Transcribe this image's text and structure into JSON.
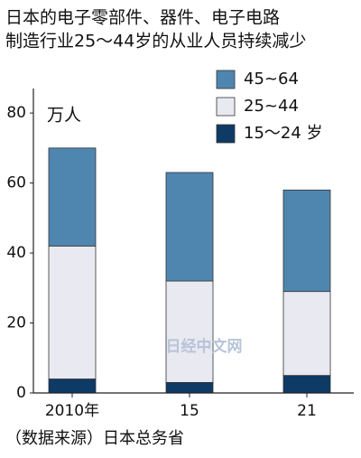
{
  "chart_data": {
    "type": "stacked_bar",
    "title": [
      "日本的电子零部件、器件、电子电路",
      "制造行业25～44岁的从业人员持续减少"
    ],
    "unit_label": "万人",
    "categories": [
      "2010年",
      "15",
      "21"
    ],
    "series": [
      {
        "name": "15～24 岁",
        "color": "#0e3a66",
        "values": [
          4,
          3,
          5
        ]
      },
      {
        "name": "25~44",
        "color": "#e9e9f1",
        "values": [
          38,
          29,
          24
        ]
      },
      {
        "name": "45~64",
        "color": "#4f86b0",
        "values": [
          28,
          31,
          29
        ]
      }
    ],
    "ylim": [
      0,
      87
    ],
    "yticks": [
      0,
      20,
      40,
      60,
      80
    ],
    "source": "（数据来源）日本总务省",
    "watermark": "日经中文网"
  }
}
